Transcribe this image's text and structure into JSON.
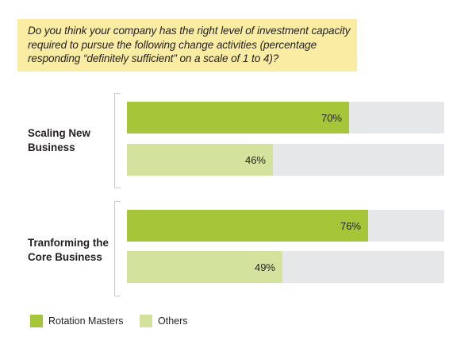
{
  "question": {
    "lines": [
      "Do you think your company has the right level of investment capacity",
      "required to pursue the following change activities (percentage",
      "responding “definitely sufficient” on a scale of 1 to 4)?"
    ]
  },
  "colors": {
    "rotation_masters": "#a7c539",
    "others": "#d3e29d",
    "track": "#e6e7e8",
    "question_background": "#faeda3"
  },
  "chart_data": {
    "type": "bar",
    "orientation": "horizontal",
    "title": "Do you think your company has the right level of investment capacity required to pursue the following change activities (percentage responding “definitely sufficient” on a scale of 1 to 4)?",
    "categories": [
      "Scaling New Business",
      "Tranforming the Core Business"
    ],
    "category_lines": [
      [
        "Scaling New",
        "Business"
      ],
      [
        "Tranforming the",
        "Core Business"
      ]
    ],
    "series": [
      {
        "name": "Rotation Masters",
        "values": [
          70,
          76
        ],
        "labels": [
          "70%",
          "76%"
        ]
      },
      {
        "name": "Others",
        "values": [
          46,
          49
        ],
        "labels": [
          "46%",
          "49%"
        ]
      }
    ],
    "xlim": [
      0,
      100
    ],
    "grid": false,
    "legend_position": "bottom-left"
  }
}
